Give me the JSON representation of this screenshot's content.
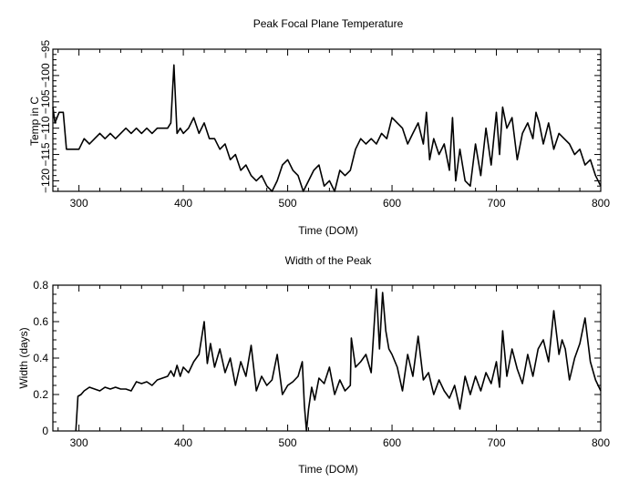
{
  "chart_data": [
    {
      "type": "line",
      "title": "Peak Focal Plane Temperature",
      "xlabel": "Time (DOM)",
      "ylabel": "Temp in C",
      "xlim": [
        275,
        800
      ],
      "ylim": [
        -122,
        -95
      ],
      "xticks": [
        300,
        400,
        500,
        600,
        700,
        800
      ],
      "xtick_labels": [
        "300",
        "400",
        "500",
        "600",
        "700",
        "800"
      ],
      "yticks": [
        -120,
        -115,
        -110,
        -105,
        -100,
        -95
      ],
      "ytick_labels": [
        "−120",
        "−115",
        "−110",
        "−105",
        "−100",
        "−95"
      ],
      "grid": false,
      "series": [
        {
          "name": "Peak focal plane temperature",
          "x": [
            275,
            277,
            279,
            281,
            283,
            285,
            288,
            300,
            305,
            310,
            315,
            320,
            325,
            330,
            335,
            340,
            345,
            350,
            355,
            360,
            365,
            370,
            375,
            380,
            385,
            388,
            391,
            394,
            397,
            400,
            405,
            410,
            415,
            420,
            425,
            430,
            435,
            440,
            445,
            450,
            455,
            460,
            465,
            470,
            475,
            480,
            485,
            490,
            495,
            500,
            505,
            510,
            515,
            520,
            525,
            530,
            535,
            540,
            545,
            550,
            555,
            560,
            565,
            570,
            575,
            580,
            585,
            590,
            595,
            600,
            605,
            610,
            615,
            620,
            625,
            630,
            633,
            636,
            640,
            645,
            650,
            655,
            658,
            661,
            665,
            670,
            675,
            680,
            685,
            690,
            695,
            700,
            703,
            706,
            710,
            715,
            720,
            725,
            730,
            735,
            738,
            741,
            745,
            750,
            755,
            760,
            765,
            770,
            775,
            780,
            785,
            790,
            795,
            800
          ],
          "values": [
            -106,
            -109,
            -108,
            -107,
            -107,
            -107,
            -114,
            -114,
            -112,
            -113,
            -112,
            -111,
            -112,
            -111,
            -112,
            -111,
            -110,
            -111,
            -110,
            -111,
            -110,
            -111,
            -110,
            -110,
            -110,
            -109,
            -98,
            -111,
            -110,
            -111,
            -110,
            -108,
            -111,
            -109,
            -112,
            -112,
            -114,
            -113,
            -116,
            -115,
            -118,
            -117,
            -119,
            -120,
            -119,
            -121,
            -122,
            -120,
            -117,
            -116,
            -118,
            -119,
            -122,
            -120,
            -118,
            -117,
            -121,
            -120,
            -122,
            -118,
            -119,
            -118,
            -114,
            -112,
            -113,
            -112,
            -113,
            -111,
            -112,
            -108,
            -109,
            -110,
            -113,
            -111,
            -109,
            -113,
            -107,
            -116,
            -112,
            -115,
            -113,
            -118,
            -108,
            -120,
            -114,
            -120,
            -121,
            -113,
            -119,
            -110,
            -117,
            -107,
            -115,
            -106,
            -110,
            -108,
            -116,
            -111,
            -109,
            -112,
            -107,
            -109,
            -113,
            -109,
            -114,
            -111,
            -112,
            -113,
            -115,
            -114,
            -117,
            -116,
            -119,
            -121
          ]
        }
      ]
    },
    {
      "type": "line",
      "title": "Width of the Peak",
      "xlabel": "Time (DOM)",
      "ylabel": "Width (days)",
      "xlim": [
        275,
        800
      ],
      "ylim": [
        0,
        0.8
      ],
      "xticks": [
        300,
        400,
        500,
        600,
        700,
        800
      ],
      "xtick_labels": [
        "300",
        "400",
        "500",
        "600",
        "700",
        "800"
      ],
      "yticks": [
        0,
        0.2,
        0.4,
        0.6,
        0.8
      ],
      "ytick_labels": [
        "0",
        "0.2",
        "0.4",
        "0.6",
        "0.8"
      ],
      "grid": false,
      "series": [
        {
          "name": "Peak width",
          "x": [
            297,
            299,
            302,
            305,
            310,
            315,
            320,
            325,
            330,
            335,
            340,
            345,
            350,
            355,
            360,
            365,
            370,
            375,
            380,
            385,
            388,
            391,
            394,
            397,
            400,
            405,
            410,
            415,
            420,
            423,
            426,
            430,
            435,
            440,
            445,
            450,
            455,
            460,
            465,
            470,
            475,
            480,
            485,
            490,
            495,
            500,
            505,
            510,
            514,
            516,
            518,
            520,
            523,
            526,
            530,
            535,
            540,
            545,
            550,
            555,
            560,
            561,
            565,
            570,
            575,
            580,
            585,
            588,
            591,
            594,
            597,
            600,
            605,
            610,
            615,
            620,
            625,
            630,
            635,
            640,
            645,
            650,
            655,
            660,
            665,
            670,
            675,
            680,
            685,
            690,
            695,
            700,
            703,
            706,
            710,
            715,
            720,
            725,
            730,
            735,
            740,
            745,
            750,
            755,
            760,
            763,
            766,
            770,
            775,
            780,
            785,
            790,
            795,
            800
          ],
          "values": [
            0,
            0.19,
            0.2,
            0.22,
            0.24,
            0.23,
            0.22,
            0.24,
            0.23,
            0.24,
            0.23,
            0.23,
            0.22,
            0.27,
            0.26,
            0.27,
            0.25,
            0.28,
            0.29,
            0.3,
            0.33,
            0.3,
            0.36,
            0.3,
            0.35,
            0.32,
            0.38,
            0.42,
            0.6,
            0.37,
            0.48,
            0.35,
            0.45,
            0.32,
            0.4,
            0.25,
            0.38,
            0.3,
            0.47,
            0.22,
            0.3,
            0.25,
            0.28,
            0.42,
            0.2,
            0.25,
            0.27,
            0.3,
            0.38,
            0.14,
            0,
            0.12,
            0.24,
            0.17,
            0.29,
            0.26,
            0.35,
            0.2,
            0.28,
            0.22,
            0.25,
            0.51,
            0.35,
            0.38,
            0.42,
            0.32,
            0.78,
            0.45,
            0.76,
            0.55,
            0.45,
            0.42,
            0.35,
            0.22,
            0.42,
            0.3,
            0.52,
            0.28,
            0.32,
            0.2,
            0.28,
            0.22,
            0.18,
            0.25,
            0.12,
            0.3,
            0.2,
            0.3,
            0.22,
            0.32,
            0.26,
            0.38,
            0.24,
            0.55,
            0.3,
            0.45,
            0.34,
            0.26,
            0.42,
            0.3,
            0.45,
            0.5,
            0.38,
            0.66,
            0.42,
            0.5,
            0.45,
            0.28,
            0.4,
            0.48,
            0.62,
            0.38,
            0.28,
            0.22
          ]
        }
      ]
    }
  ]
}
